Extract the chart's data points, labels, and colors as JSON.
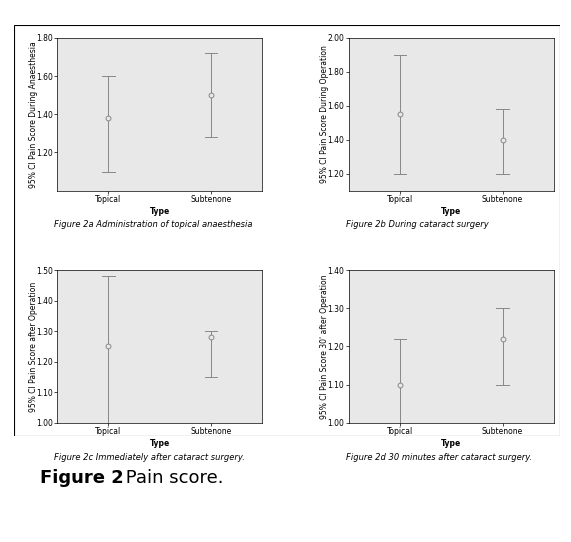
{
  "subplots": [
    {
      "title": "Figure 2a Administration of topical anaesthesia",
      "ylabel": "95% CI Pain Score During Anaesthesia",
      "xlabel": "Type",
      "x_labels": [
        "Topical",
        "Subtenone"
      ],
      "means": [
        1.38,
        1.5
      ],
      "ci_low": [
        1.1,
        1.28
      ],
      "ci_high": [
        1.6,
        1.72
      ],
      "ylim": [
        1.0,
        1.8
      ],
      "yticks": [
        1.2,
        1.4,
        1.6,
        1.8
      ]
    },
    {
      "title": "Figure 2b During cataract surgery",
      "ylabel": "95% CI Pain Score During Operation",
      "xlabel": "Type",
      "x_labels": [
        "Topical",
        "Subtenone"
      ],
      "means": [
        1.55,
        1.4
      ],
      "ci_low": [
        1.2,
        1.2
      ],
      "ci_high": [
        1.9,
        1.58
      ],
      "ylim": [
        1.1,
        2.0
      ],
      "yticks": [
        1.2,
        1.4,
        1.6,
        1.8,
        2.0
      ]
    },
    {
      "title": "Figure 2c Immediately after cataract surgery.",
      "ylabel": "95% CI Pain Score after Operation",
      "xlabel": "Type",
      "x_labels": [
        "Topical",
        "Subtenone"
      ],
      "means": [
        1.25,
        1.28
      ],
      "ci_low": [
        1.0,
        1.15
      ],
      "ci_high": [
        1.48,
        1.3
      ],
      "ylim": [
        1.0,
        1.5
      ],
      "yticks": [
        1.0,
        1.1,
        1.2,
        1.3,
        1.4,
        1.5
      ]
    },
    {
      "title": "Figure 2d 30 minutes after cataract surgery.",
      "ylabel": "95% CI Pain Score 30' after Operation",
      "xlabel": "Type",
      "x_labels": [
        "Topical",
        "Subtenone"
      ],
      "means": [
        1.1,
        1.22
      ],
      "ci_low": [
        0.92,
        1.1
      ],
      "ci_high": [
        1.22,
        1.3
      ],
      "ylim": [
        1.0,
        1.4
      ],
      "yticks": [
        1.0,
        1.1,
        1.2,
        1.3,
        1.4
      ]
    }
  ],
  "plot_bg_color": "#e8e8e8",
  "marker_color": "#888888",
  "line_color": "#888888",
  "label_fontsize": 5.5,
  "tick_fontsize": 5.5,
  "caption_fontsize": 6.0,
  "figure_title": "Figure 2",
  "figure_subtitle": " Pain score.",
  "outer_border_color": "#c06090"
}
